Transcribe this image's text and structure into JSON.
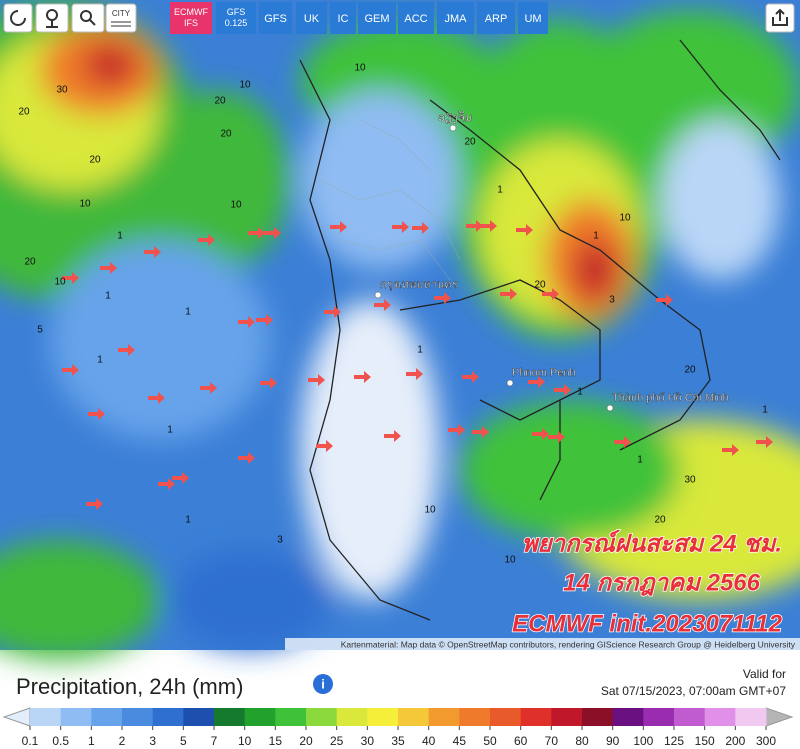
{
  "toolbar": {
    "city": "CITY",
    "models": [
      "ECMWF IFS",
      "GFS 0.125",
      "GFS",
      "UK",
      "IC",
      "GEM",
      "ACC",
      "JMA",
      "ARP",
      "UM"
    ]
  },
  "map": {
    "place_labels": [
      "ວຽງຈັນ",
      "กรุงเทพมหานคร",
      "Phnom Penh",
      "Thành phố Hồ Chí Minh"
    ],
    "contour_labels": [
      30,
      20,
      20,
      10,
      20,
      10,
      1,
      1,
      10,
      1,
      1,
      1,
      3,
      1,
      1,
      20,
      20,
      10,
      10,
      20,
      1,
      1,
      10,
      20,
      20,
      30,
      10,
      20,
      3,
      1,
      5,
      1,
      10,
      1
    ],
    "caption": [
      "พยากรณ์ฝนสะสม 24 ชม.",
      "14 กรกฎาคม 2566",
      "ECMWF init.2023071112"
    ],
    "attribution": "Kartenmaterial: Map data © OpenStreetMap contributors, rendering GIScience Research Group @ Heidelberg University"
  },
  "legend": {
    "title": "Precipitation, 24h (mm)",
    "valid_label": "Valid for",
    "valid_time": "Sat 07/15/2023, 07:00am GMT+07",
    "scale_labels": [
      0.1,
      0.5,
      1,
      2,
      3,
      5,
      7,
      10,
      15,
      20,
      25,
      30,
      35,
      40,
      45,
      50,
      60,
      70,
      80,
      90,
      100,
      125,
      150,
      200,
      300
    ],
    "colors": [
      "#b9d6f7",
      "#8fbcf2",
      "#66a3ea",
      "#4a8be0",
      "#2f6fd0",
      "#1c4fae",
      "#167a2e",
      "#22a12c",
      "#3fc23a",
      "#8bd93d",
      "#d9e83b",
      "#f5ef3a",
      "#f5c83a",
      "#f29a2e",
      "#ef7a2b",
      "#e85a2a",
      "#e0302a",
      "#c0182a",
      "#8c0f28",
      "#6a1080",
      "#9a2cb0",
      "#c05cd0",
      "#e090e8",
      "#f0c8f0"
    ]
  }
}
